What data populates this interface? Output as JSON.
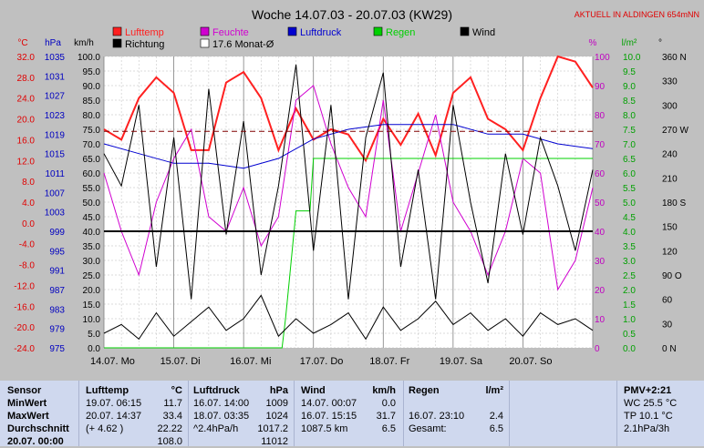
{
  "title": "Woche 14.07.03 - 20.07.03 (KW29)",
  "station_note": "AKTUELL IN ALDINGEN 654mNN",
  "legend": [
    {
      "label": "Lufttemp",
      "color": "#ff2020"
    },
    {
      "label": "Feuchte",
      "color": "#d000d0"
    },
    {
      "label": "Luftdruck",
      "color": "#0000d0"
    },
    {
      "label": "Regen",
      "color": "#00d000"
    },
    {
      "label": "Wind",
      "color": "#000000"
    },
    {
      "label": "Richtung",
      "color": "#000000"
    },
    {
      "label": "17.6 Monat-Ø",
      "color": "#800000"
    }
  ],
  "axis_units": {
    "temp": "°C",
    "pressure": "hPa",
    "wind": "km/h",
    "humidity": "%",
    "rain": "l/m²",
    "direction": "°"
  },
  "axis_ticks": {
    "temp": [
      "32.0",
      "28.0",
      "24.0",
      "20.0",
      "16.0",
      "12.0",
      "8.0",
      "4.0",
      "0.0",
      "-4.0",
      "-8.0",
      "-12.0",
      "-16.0",
      "-20.0",
      "-24.0"
    ],
    "pressure": [
      "1035",
      "1031",
      "1027",
      "1023",
      "1019",
      "1015",
      "1011",
      "1007",
      "1003",
      "999",
      "995",
      "991",
      "987",
      "983",
      "979",
      "975"
    ],
    "wind": [
      "100.0",
      "95.0",
      "90.0",
      "85.0",
      "80.0",
      "75.0",
      "70.0",
      "65.0",
      "60.0",
      "55.0",
      "50.0",
      "45.0",
      "40.0",
      "35.0",
      "30.0",
      "25.0",
      "20.0",
      "15.0",
      "10.0",
      "5.0",
      "0.0"
    ],
    "humidity": [
      "100",
      "90",
      "80",
      "70",
      "60",
      "50",
      "40",
      "30",
      "20",
      "10",
      "0"
    ],
    "rain": [
      "10.0",
      "9.5",
      "9.0",
      "8.5",
      "8.0",
      "7.5",
      "7.0",
      "6.5",
      "6.0",
      "5.5",
      "5.0",
      "4.5",
      "4.0",
      "3.5",
      "3.0",
      "2.5",
      "2.0",
      "1.5",
      "1.0",
      "0.5",
      "0.0"
    ],
    "direction": [
      "360 N",
      "330",
      "300",
      "270 W",
      "240",
      "210",
      "180 S",
      "150",
      "120",
      "90 O",
      "60",
      "30",
      "0 N"
    ]
  },
  "chart_data": {
    "type": "line",
    "title": "Woche 14.07.03 - 20.07.03 (KW29)",
    "categories": [
      "14.07. Mo",
      "15.07. Di",
      "16.07. Mi",
      "17.07. Do",
      "18.07. Fr",
      "19.07. Sa",
      "20.07. So"
    ],
    "x_range_days": [
      0,
      7
    ],
    "series": [
      {
        "name": "Lufttemp",
        "axis": "°C",
        "ylim": [
          -24,
          32
        ],
        "color": "#ff2020",
        "x": [
          0,
          0.25,
          0.5,
          0.75,
          1,
          1.25,
          1.5,
          1.75,
          2,
          2.25,
          2.5,
          2.75,
          3,
          3.25,
          3.5,
          3.75,
          4,
          4.25,
          4.5,
          4.75,
          5,
          5.25,
          5.5,
          5.75,
          6,
          6.25,
          6.5,
          6.75,
          7
        ],
        "y": [
          18,
          16,
          24,
          28,
          25,
          14,
          14,
          27,
          29,
          24,
          14,
          22,
          16,
          18,
          17,
          12,
          20,
          15,
          21,
          13,
          25,
          28,
          20,
          18,
          14,
          24,
          32,
          31,
          26
        ]
      },
      {
        "name": "Feuchte",
        "axis": "%",
        "ylim": [
          0,
          100
        ],
        "color": "#d000d0",
        "x": [
          0,
          0.25,
          0.5,
          0.75,
          1,
          1.25,
          1.5,
          1.75,
          2,
          2.25,
          2.5,
          2.75,
          3,
          3.25,
          3.5,
          3.75,
          4,
          4.25,
          4.5,
          4.75,
          5,
          5.25,
          5.5,
          5.75,
          6,
          6.25,
          6.5,
          6.75,
          7
        ],
        "y": [
          60,
          40,
          25,
          50,
          65,
          75,
          45,
          40,
          55,
          35,
          45,
          85,
          90,
          70,
          55,
          45,
          85,
          40,
          60,
          80,
          50,
          40,
          25,
          40,
          65,
          60,
          20,
          30,
          55
        ]
      },
      {
        "name": "Luftdruck",
        "axis": "hPa",
        "ylim": [
          975,
          1035
        ],
        "color": "#0000d0",
        "x": [
          0,
          0.5,
          1,
          1.5,
          2,
          2.5,
          3,
          3.5,
          4,
          4.5,
          5,
          5.5,
          6,
          6.5,
          7
        ],
        "y": [
          1017,
          1015,
          1013,
          1013,
          1012,
          1014,
          1018,
          1020,
          1021,
          1021,
          1021,
          1019,
          1019,
          1017,
          1016
        ]
      },
      {
        "name": "Regen",
        "axis": "l/m²",
        "ylim": [
          0,
          10
        ],
        "color": "#00d000",
        "x": [
          0,
          2.55,
          2.6,
          2.65,
          2.75,
          2.95,
          3.0,
          3.3,
          7
        ],
        "y": [
          0,
          0,
          1.0,
          2.2,
          4.7,
          4.7,
          6.5,
          6.5,
          6.5
        ]
      },
      {
        "name": "Wind",
        "axis": "km/h",
        "ylim": [
          0,
          100
        ],
        "color": "#000000",
        "x": [
          0,
          0.25,
          0.5,
          0.75,
          1,
          1.25,
          1.5,
          1.75,
          2,
          2.25,
          2.5,
          2.75,
          3,
          3.25,
          3.5,
          3.75,
          4,
          4.25,
          4.5,
          4.75,
          5,
          5.25,
          5.5,
          5.75,
          6,
          6.25,
          6.5,
          6.75,
          7
        ],
        "y": [
          5,
          8,
          3,
          12,
          4,
          9,
          14,
          6,
          10,
          18,
          4,
          10,
          5,
          8,
          12,
          3,
          14,
          6,
          10,
          16,
          8,
          12,
          6,
          10,
          4,
          12,
          8,
          10,
          6
        ]
      },
      {
        "name": "Richtung",
        "axis": "°",
        "ylim": [
          0,
          360
        ],
        "color": "#000000",
        "x": [
          0,
          0.25,
          0.5,
          0.75,
          1,
          1.25,
          1.5,
          1.75,
          2,
          2.25,
          2.5,
          2.75,
          3,
          3.25,
          3.5,
          3.75,
          4,
          4.25,
          4.5,
          4.75,
          5,
          5.25,
          5.5,
          5.75,
          6,
          6.25,
          6.5,
          6.75,
          7
        ],
        "y": [
          240,
          200,
          300,
          100,
          260,
          60,
          320,
          140,
          280,
          90,
          200,
          350,
          120,
          300,
          60,
          260,
          340,
          100,
          220,
          60,
          300,
          180,
          80,
          240,
          140,
          260,
          200,
          120,
          220
        ]
      },
      {
        "name": "17.6 Monat-Ø",
        "axis": "°C",
        "ylim": [
          -24,
          32
        ],
        "color": "#800000",
        "dashed": true,
        "x": [
          0,
          7
        ],
        "y": [
          17.6,
          17.6
        ]
      }
    ],
    "reference_line": {
      "axis": "km/h",
      "value": 40
    },
    "grid": true
  },
  "table": {
    "sensor": {
      "header": "Sensor",
      "rows": [
        "MinWert",
        "MaxWert",
        "Durchschnitt",
        "20.07. 00:00"
      ]
    },
    "lufttemp": {
      "header": "Lufttemp",
      "unit": "°C",
      "rows": [
        {
          "a": "19.07.  06:15",
          "b": "11.7"
        },
        {
          "a": "20.07.  14:37",
          "b": "33.4"
        },
        {
          "a": "(+ 4.62 )",
          "b": "22.22"
        },
        {
          "a": "",
          "b": "108.0"
        }
      ]
    },
    "luftdruck": {
      "header": "Luftdruck",
      "unit": "hPa",
      "rows": [
        {
          "a": "16.07.  14:00",
          "b": "1009"
        },
        {
          "a": "18.07.  03:35",
          "b": "1024"
        },
        {
          "a": "^2.4hPa/h",
          "b": "1017.2"
        },
        {
          "a": "",
          "b": "11012"
        }
      ]
    },
    "wind": {
      "header": "Wind",
      "unit": "km/h",
      "rows": [
        {
          "a": "14.07.  00:07",
          "b": "0.0"
        },
        {
          "a": "16.07.  15:15",
          "b": "31.7"
        },
        {
          "a": "1087.5 km",
          "b": "6.5"
        },
        {
          "a": "",
          "b": ""
        }
      ]
    },
    "regen": {
      "header": "Regen",
      "unit": "l/m²",
      "rows": [
        {
          "a": "",
          "b": ""
        },
        {
          "a": "16.07.  23:10",
          "b": "2.4"
        },
        {
          "a": "Gesamt:",
          "b": "6.5"
        },
        {
          "a": "",
          "b": ""
        }
      ]
    },
    "pmv": {
      "header": "PMV+2:21",
      "rows": [
        "WC 25.5 °C",
        "TP 10.1 °C",
        "2.1hPa/3h",
        ""
      ]
    }
  }
}
